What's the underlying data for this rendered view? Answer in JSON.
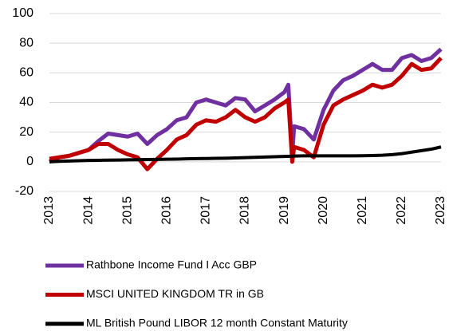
{
  "chart_data": {
    "type": "line",
    "x": [
      2013,
      2013.25,
      2013.5,
      2013.75,
      2014,
      2014.25,
      2014.5,
      2014.75,
      2015,
      2015.25,
      2015.5,
      2015.75,
      2016,
      2016.25,
      2016.5,
      2016.75,
      2017,
      2017.25,
      2017.5,
      2017.75,
      2018,
      2018.25,
      2018.5,
      2018.75,
      2019,
      2019.1,
      2019.2,
      2019.25,
      2019.5,
      2019.75,
      2020,
      2020.25,
      2020.5,
      2020.75,
      2021,
      2021.25,
      2021.5,
      2021.75,
      2022,
      2022.25,
      2022.5,
      2022.75,
      2023
    ],
    "series": [
      {
        "name": "Rathbone Income Fund I Acc GBP",
        "color": "#7030a0",
        "values": [
          0,
          3,
          4,
          6,
          8,
          14,
          19,
          18,
          17,
          19,
          12,
          18,
          22,
          28,
          30,
          40,
          42,
          40,
          38,
          43,
          42,
          34,
          38,
          42,
          47,
          52,
          5,
          24,
          22,
          15,
          35,
          48,
          55,
          58,
          62,
          66,
          62,
          62,
          70,
          72,
          68,
          70,
          76
        ]
      },
      {
        "name": "MSCI UNITED KINGDOM TR in GB",
        "color": "#c00000",
        "values": [
          2,
          3,
          4,
          6,
          8,
          12,
          12,
          8,
          5,
          3,
          -5,
          2,
          8,
          15,
          18,
          25,
          28,
          27,
          30,
          35,
          30,
          27,
          30,
          36,
          40,
          42,
          0,
          10,
          8,
          3,
          25,
          38,
          42,
          45,
          48,
          52,
          50,
          52,
          58,
          66,
          62,
          63,
          70
        ]
      },
      {
        "name": "ML British Pound LIBOR 12 month Constant Maturity",
        "color": "#000000",
        "values": [
          0,
          0.3,
          0.5,
          0.7,
          0.9,
          1,
          1.1,
          1.2,
          1.3,
          1.4,
          1.5,
          1.6,
          1.7,
          1.8,
          2,
          2.1,
          2.2,
          2.3,
          2.4,
          2.6,
          2.8,
          3,
          3.2,
          3.4,
          3.6,
          3.7,
          3.8,
          3.9,
          4,
          4,
          4,
          4,
          4,
          4,
          4.1,
          4.2,
          4.4,
          4.8,
          5.5,
          6.5,
          7.5,
          8.5,
          10
        ]
      }
    ],
    "xlim": [
      2013,
      2023
    ],
    "xticks": [
      2013,
      2014,
      2015,
      2016,
      2017,
      2018,
      2019,
      2020,
      2021,
      2022,
      2023
    ],
    "ylim": [
      -20,
      100
    ],
    "yticks": [
      -20,
      0,
      20,
      40,
      60,
      80,
      100
    ],
    "grid": true
  }
}
